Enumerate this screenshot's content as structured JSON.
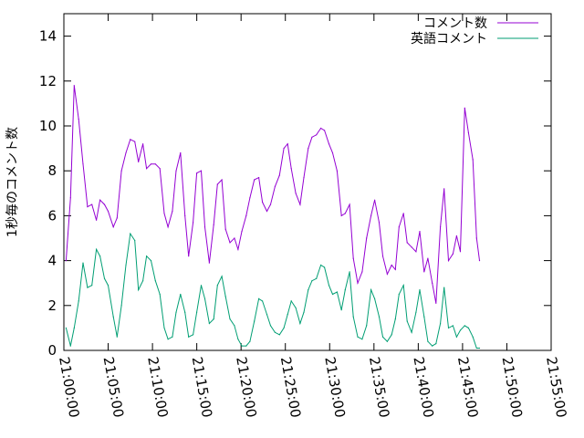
{
  "chart_data": {
    "type": "line",
    "title": "",
    "xlabel": "",
    "ylabel": "1秒毎のコメント数",
    "xlim": [
      "21:00:00",
      "21:55:00"
    ],
    "ylim": [
      0,
      15
    ],
    "xtick_labels": [
      "21:00:00",
      "21:05:00",
      "21:10:00",
      "21:15:00",
      "21:20:00",
      "21:25:00",
      "21:30:00",
      "21:35:00",
      "21:40:00",
      "21:45:00",
      "21:50:00",
      "21:55:00"
    ],
    "ytick_labels": [
      "0",
      "2",
      "4",
      "6",
      "8",
      "10",
      "12",
      "14"
    ],
    "grid": false,
    "legend_position": "top-right",
    "series": [
      {
        "name": "コメント数",
        "color": "#9400d3",
        "points": [
          [
            "21:00:15",
            4.0
          ],
          [
            "21:00:45",
            6.8
          ],
          [
            "21:01:10",
            11.8
          ],
          [
            "21:01:40",
            10.3
          ],
          [
            "21:02:10",
            8.3
          ],
          [
            "21:02:40",
            6.4
          ],
          [
            "21:03:10",
            6.5
          ],
          [
            "21:03:40",
            5.8
          ],
          [
            "21:04:05",
            6.7
          ],
          [
            "21:04:35",
            6.5
          ],
          [
            "21:05:00",
            6.2
          ],
          [
            "21:05:35",
            5.5
          ],
          [
            "21:06:00",
            5.9
          ],
          [
            "21:06:30",
            8.0
          ],
          [
            "21:07:00",
            8.8
          ],
          [
            "21:07:30",
            9.4
          ],
          [
            "21:08:00",
            9.3
          ],
          [
            "21:08:25",
            8.4
          ],
          [
            "21:08:55",
            9.2
          ],
          [
            "21:09:20",
            8.1
          ],
          [
            "21:09:50",
            8.3
          ],
          [
            "21:10:20",
            8.3
          ],
          [
            "21:10:50",
            8.1
          ],
          [
            "21:11:20",
            6.1
          ],
          [
            "21:11:45",
            5.5
          ],
          [
            "21:12:15",
            6.2
          ],
          [
            "21:12:40",
            8.0
          ],
          [
            "21:13:10",
            8.8
          ],
          [
            "21:13:40",
            6.0
          ],
          [
            "21:14:05",
            4.2
          ],
          [
            "21:14:35",
            5.7
          ],
          [
            "21:15:00",
            7.9
          ],
          [
            "21:15:30",
            8.0
          ],
          [
            "21:15:55",
            5.5
          ],
          [
            "21:16:25",
            3.9
          ],
          [
            "21:16:55",
            5.6
          ],
          [
            "21:17:20",
            7.4
          ],
          [
            "21:17:50",
            7.6
          ],
          [
            "21:18:15",
            5.4
          ],
          [
            "21:18:45",
            4.8
          ],
          [
            "21:19:15",
            5.0
          ],
          [
            "21:19:40",
            4.5
          ],
          [
            "21:20:05",
            5.3
          ],
          [
            "21:20:35",
            6.0
          ],
          [
            "21:21:00",
            6.8
          ],
          [
            "21:21:30",
            7.6
          ],
          [
            "21:22:00",
            7.7
          ],
          [
            "21:22:25",
            6.6
          ],
          [
            "21:22:55",
            6.2
          ],
          [
            "21:23:20",
            6.5
          ],
          [
            "21:23:50",
            7.3
          ],
          [
            "21:24:20",
            7.8
          ],
          [
            "21:24:50",
            9.0
          ],
          [
            "21:25:15",
            9.2
          ],
          [
            "21:25:40",
            8.1
          ],
          [
            "21:26:10",
            7.0
          ],
          [
            "21:26:40",
            6.5
          ],
          [
            "21:27:05",
            7.7
          ],
          [
            "21:27:35",
            9.0
          ],
          [
            "21:28:00",
            9.5
          ],
          [
            "21:28:30",
            9.6
          ],
          [
            "21:29:00",
            9.9
          ],
          [
            "21:29:25",
            9.8
          ],
          [
            "21:29:55",
            9.2
          ],
          [
            "21:30:20",
            8.8
          ],
          [
            "21:30:50",
            8.0
          ],
          [
            "21:31:20",
            6.0
          ],
          [
            "21:31:45",
            6.1
          ],
          [
            "21:32:15",
            6.5
          ],
          [
            "21:32:40",
            4.1
          ],
          [
            "21:33:10",
            3.0
          ],
          [
            "21:33:40",
            3.5
          ],
          [
            "21:34:10",
            5.0
          ],
          [
            "21:34:40",
            6.0
          ],
          [
            "21:35:05",
            6.7
          ],
          [
            "21:35:35",
            5.7
          ],
          [
            "21:36:00",
            4.2
          ],
          [
            "21:36:30",
            3.4
          ],
          [
            "21:37:00",
            3.8
          ],
          [
            "21:37:25",
            3.6
          ],
          [
            "21:37:50",
            5.5
          ],
          [
            "21:38:20",
            6.1
          ],
          [
            "21:38:45",
            4.8
          ],
          [
            "21:39:15",
            4.6
          ],
          [
            "21:39:45",
            4.4
          ],
          [
            "21:40:10",
            5.3
          ],
          [
            "21:40:40",
            3.5
          ],
          [
            "21:41:05",
            4.1
          ],
          [
            "21:41:35",
            3.0
          ],
          [
            "21:42:00",
            2.1
          ],
          [
            "21:42:30",
            5.5
          ],
          [
            "21:42:55",
            7.2
          ],
          [
            "21:43:25",
            4.0
          ],
          [
            "21:43:55",
            4.3
          ],
          [
            "21:44:20",
            5.1
          ],
          [
            "21:44:45",
            4.4
          ],
          [
            "21:45:15",
            10.8
          ],
          [
            "21:45:40",
            9.7
          ],
          [
            "21:46:10",
            8.5
          ],
          [
            "21:46:35",
            5.0
          ],
          [
            "21:46:55",
            4.0
          ]
        ]
      },
      {
        "name": "英語コメント",
        "color": "#009e73",
        "points": [
          [
            "21:00:15",
            1.0
          ],
          [
            "21:00:45",
            0.2
          ],
          [
            "21:01:10",
            1.0
          ],
          [
            "21:01:40",
            2.2
          ],
          [
            "21:02:10",
            3.9
          ],
          [
            "21:02:40",
            2.8
          ],
          [
            "21:03:10",
            2.9
          ],
          [
            "21:03:40",
            4.5
          ],
          [
            "21:04:05",
            4.2
          ],
          [
            "21:04:35",
            3.2
          ],
          [
            "21:05:00",
            2.9
          ],
          [
            "21:05:35",
            1.5
          ],
          [
            "21:06:00",
            0.6
          ],
          [
            "21:06:30",
            2.0
          ],
          [
            "21:07:00",
            3.8
          ],
          [
            "21:07:30",
            5.2
          ],
          [
            "21:08:00",
            4.9
          ],
          [
            "21:08:25",
            2.7
          ],
          [
            "21:08:55",
            3.1
          ],
          [
            "21:09:20",
            4.2
          ],
          [
            "21:09:50",
            4.0
          ],
          [
            "21:10:20",
            3.1
          ],
          [
            "21:10:50",
            2.5
          ],
          [
            "21:11:20",
            1.0
          ],
          [
            "21:11:45",
            0.5
          ],
          [
            "21:12:15",
            0.6
          ],
          [
            "21:12:40",
            1.7
          ],
          [
            "21:13:10",
            2.5
          ],
          [
            "21:13:40",
            1.7
          ],
          [
            "21:14:05",
            0.6
          ],
          [
            "21:14:35",
            0.7
          ],
          [
            "21:15:00",
            1.7
          ],
          [
            "21:15:30",
            2.9
          ],
          [
            "21:15:55",
            2.3
          ],
          [
            "21:16:25",
            1.2
          ],
          [
            "21:16:55",
            1.4
          ],
          [
            "21:17:20",
            2.9
          ],
          [
            "21:17:50",
            3.3
          ],
          [
            "21:18:15",
            2.4
          ],
          [
            "21:18:45",
            1.4
          ],
          [
            "21:19:15",
            1.1
          ],
          [
            "21:19:40",
            0.5
          ],
          [
            "21:20:05",
            0.2
          ],
          [
            "21:20:35",
            0.2
          ],
          [
            "21:21:00",
            0.4
          ],
          [
            "21:21:30",
            1.3
          ],
          [
            "21:22:00",
            2.3
          ],
          [
            "21:22:25",
            2.2
          ],
          [
            "21:22:55",
            1.6
          ],
          [
            "21:23:20",
            1.1
          ],
          [
            "21:23:50",
            0.8
          ],
          [
            "21:24:20",
            0.7
          ],
          [
            "21:24:50",
            1.0
          ],
          [
            "21:25:15",
            1.6
          ],
          [
            "21:25:40",
            2.2
          ],
          [
            "21:26:10",
            1.9
          ],
          [
            "21:26:40",
            1.2
          ],
          [
            "21:27:05",
            1.7
          ],
          [
            "21:27:35",
            2.7
          ],
          [
            "21:28:00",
            3.1
          ],
          [
            "21:28:30",
            3.2
          ],
          [
            "21:29:00",
            3.8
          ],
          [
            "21:29:25",
            3.7
          ],
          [
            "21:29:55",
            2.9
          ],
          [
            "21:30:20",
            2.5
          ],
          [
            "21:30:50",
            2.6
          ],
          [
            "21:31:20",
            1.8
          ],
          [
            "21:31:45",
            2.7
          ],
          [
            "21:32:15",
            3.5
          ],
          [
            "21:32:40",
            1.5
          ],
          [
            "21:33:10",
            0.6
          ],
          [
            "21:33:40",
            0.5
          ],
          [
            "21:34:10",
            1.1
          ],
          [
            "21:34:40",
            2.7
          ],
          [
            "21:35:05",
            2.3
          ],
          [
            "21:35:35",
            1.5
          ],
          [
            "21:36:00",
            0.6
          ],
          [
            "21:36:30",
            0.4
          ],
          [
            "21:37:00",
            0.7
          ],
          [
            "21:37:25",
            1.4
          ],
          [
            "21:37:50",
            2.5
          ],
          [
            "21:38:20",
            2.9
          ],
          [
            "21:38:45",
            1.3
          ],
          [
            "21:39:15",
            0.8
          ],
          [
            "21:39:45",
            1.7
          ],
          [
            "21:40:10",
            2.7
          ],
          [
            "21:40:40",
            1.5
          ],
          [
            "21:41:05",
            0.4
          ],
          [
            "21:41:35",
            0.2
          ],
          [
            "21:42:00",
            0.3
          ],
          [
            "21:42:30",
            1.2
          ],
          [
            "21:42:55",
            2.8
          ],
          [
            "21:43:25",
            1.0
          ],
          [
            "21:43:55",
            1.1
          ],
          [
            "21:44:20",
            0.6
          ],
          [
            "21:44:45",
            0.9
          ],
          [
            "21:45:15",
            1.1
          ],
          [
            "21:45:40",
            1.0
          ],
          [
            "21:46:10",
            0.6
          ],
          [
            "21:46:35",
            0.1
          ],
          [
            "21:46:55",
            0.1
          ]
        ]
      }
    ]
  }
}
